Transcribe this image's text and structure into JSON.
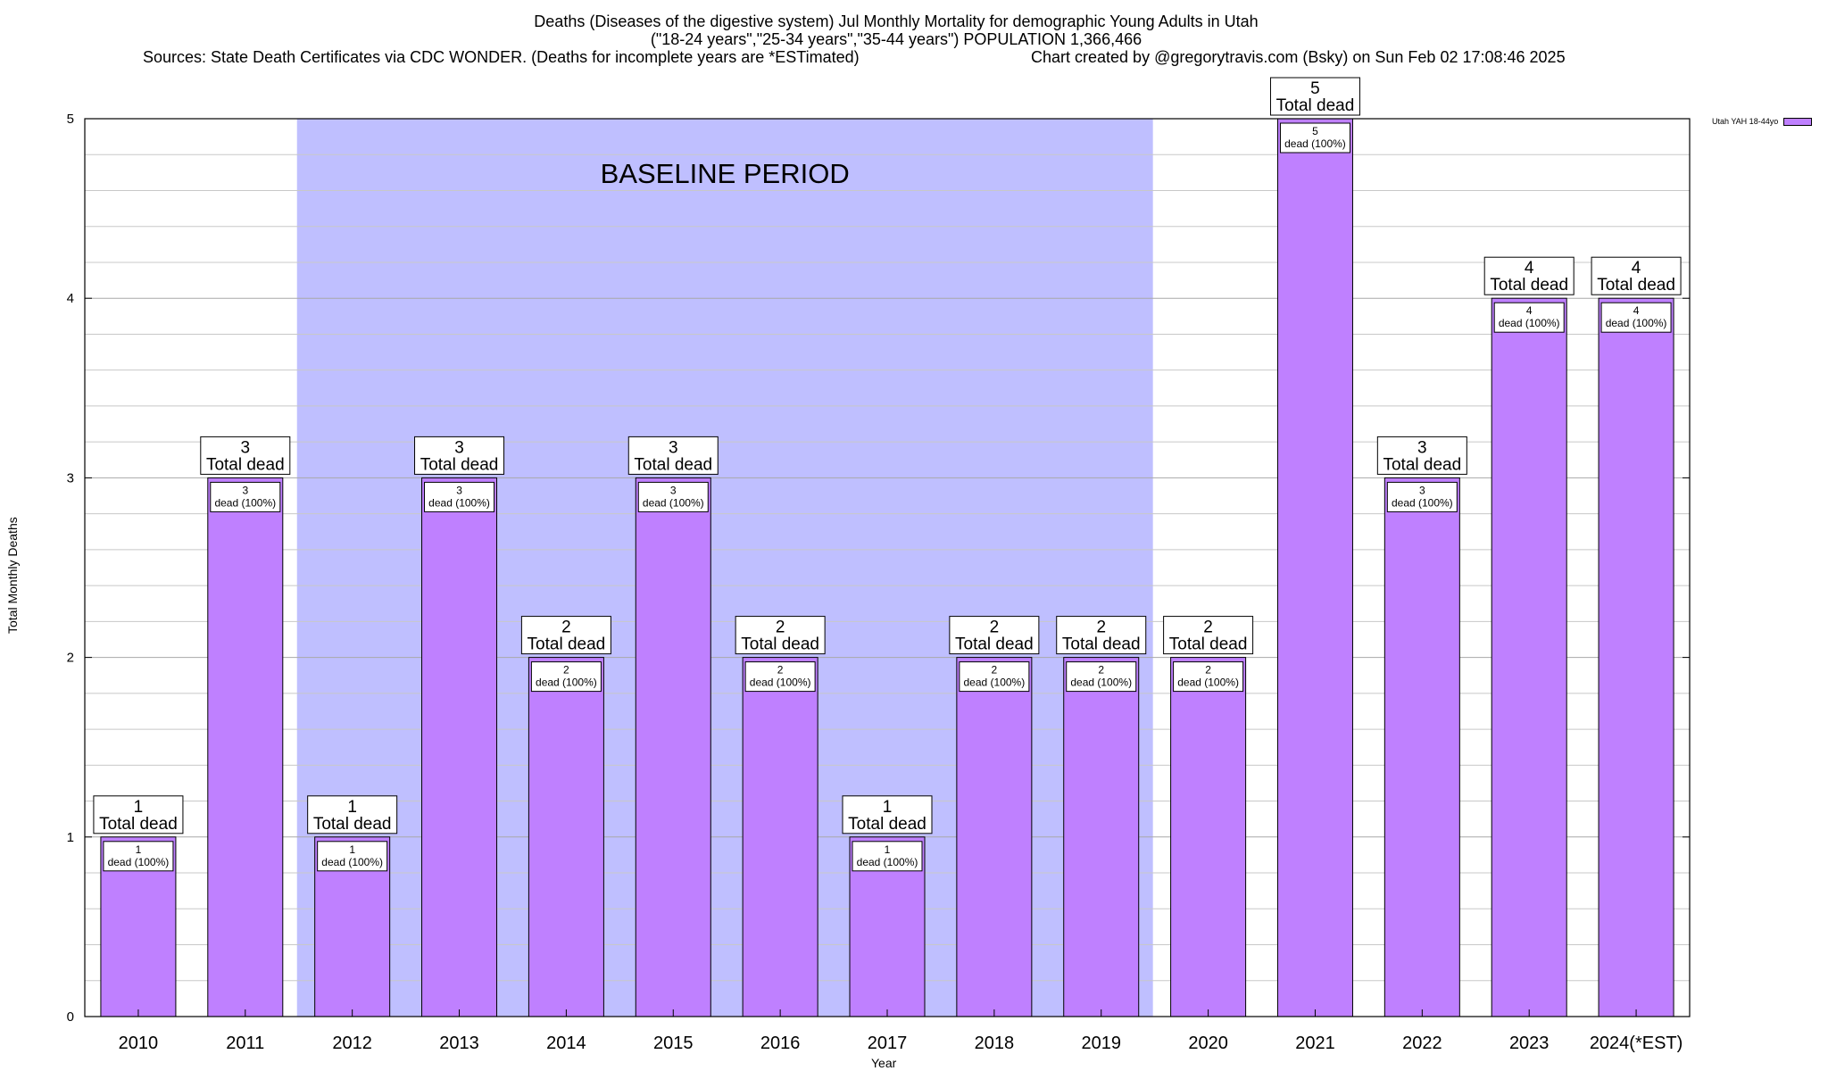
{
  "titles": {
    "line1": "Deaths (Diseases of the digestive system) Jul Monthly Mortality for demographic Young Adults in Utah",
    "line2": "(\"18-24 years\",\"25-34 years\",\"35-44 years\") POPULATION 1,366,466",
    "line3": "Sources: State Death Certificates via CDC WONDER. (Deaths for incomplete years are *ESTimated)",
    "line4": "Chart created by @gregorytravis.com (Bsky) on Sun Feb 02 17:08:46 2025"
  },
  "colors": {
    "bar": "#bf80ff",
    "baseline": "#bfbfff"
  },
  "chart_data": {
    "type": "bar",
    "xlabel": "Year",
    "ylabel": "Total Monthly Deaths",
    "ylim": [
      0,
      5
    ],
    "yticks": [
      0,
      1,
      2,
      3,
      4,
      5
    ],
    "grid": true,
    "categories": [
      "2010",
      "2011",
      "2012",
      "2013",
      "2014",
      "2015",
      "2016",
      "2017",
      "2018",
      "2019",
      "2020",
      "2021",
      "2022",
      "2023",
      "2024(*EST)"
    ],
    "series": [
      {
        "name": "Utah YAH 18-44yo",
        "values": [
          1,
          3,
          1,
          3,
          2,
          3,
          2,
          1,
          2,
          2,
          2,
          5,
          3,
          4,
          4
        ]
      }
    ],
    "top_label_suffix": "Total dead",
    "inner_label_suffix": "dead (100%)",
    "baseline_region": {
      "label": "BASELINE PERIOD",
      "start": "2012",
      "end": "2019"
    },
    "legend_position": "top-right"
  }
}
